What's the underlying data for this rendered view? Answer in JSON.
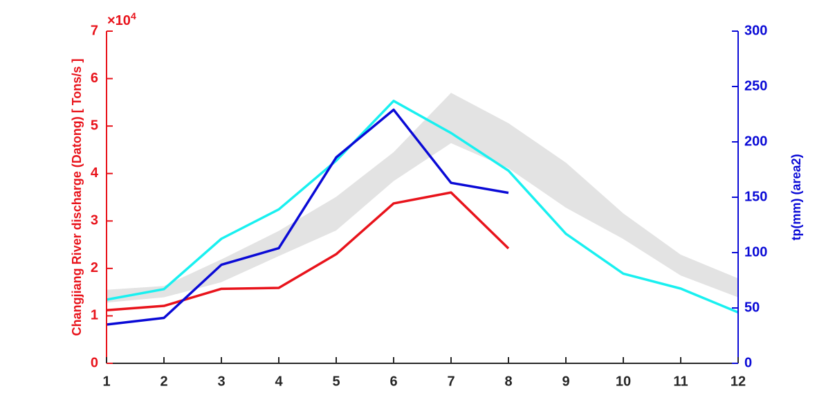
{
  "chart_data": {
    "type": "line",
    "y_label": "Changjiang River discharge (Datong) [ Tons/s ]",
    "y2_label": "tp(mm) (area2)",
    "y_multiplier": "×10",
    "y_multiplier_exponent": "4",
    "x": [
      1,
      2,
      3,
      4,
      5,
      6,
      7,
      8,
      9,
      10,
      11,
      12
    ],
    "xlim": [
      1,
      12
    ],
    "xticks": [
      1,
      2,
      3,
      4,
      5,
      6,
      7,
      8,
      9,
      10,
      11,
      12
    ],
    "ylim": [
      0,
      7
    ],
    "yticks": [
      0,
      1,
      2,
      3,
      4,
      5,
      6,
      7
    ],
    "y2lim": [
      0,
      300
    ],
    "y2ticks": [
      0,
      50,
      100,
      150,
      200,
      250,
      300
    ],
    "y_color": "#e8131b",
    "y2_color": "#0a0ad6",
    "band": {
      "color": "#e3e3e3",
      "lower": [
        1.28,
        1.39,
        1.71,
        2.26,
        2.8,
        3.84,
        4.64,
        4.11,
        3.28,
        2.62,
        1.85,
        1.39
      ],
      "upper": [
        1.55,
        1.63,
        2.19,
        2.79,
        3.51,
        4.45,
        5.7,
        5.06,
        4.23,
        3.16,
        2.29,
        1.79
      ]
    },
    "series": [
      {
        "color": "#19f0f0",
        "axis": "y2",
        "values": [
          57.5,
          67,
          112.5,
          139,
          183,
          237,
          208,
          174,
          117,
          81,
          67.5,
          46
        ]
      },
      {
        "color": "#e8131b",
        "values": [
          1.12,
          1.21,
          1.57,
          1.59,
          2.3,
          3.37,
          3.6,
          2.42,
          null,
          null,
          null,
          null
        ]
      },
      {
        "color": "#0a0ad6",
        "axis": "y2",
        "values": [
          35,
          41,
          89,
          104,
          186,
          229,
          163,
          154,
          null,
          null,
          null,
          null
        ]
      }
    ]
  }
}
